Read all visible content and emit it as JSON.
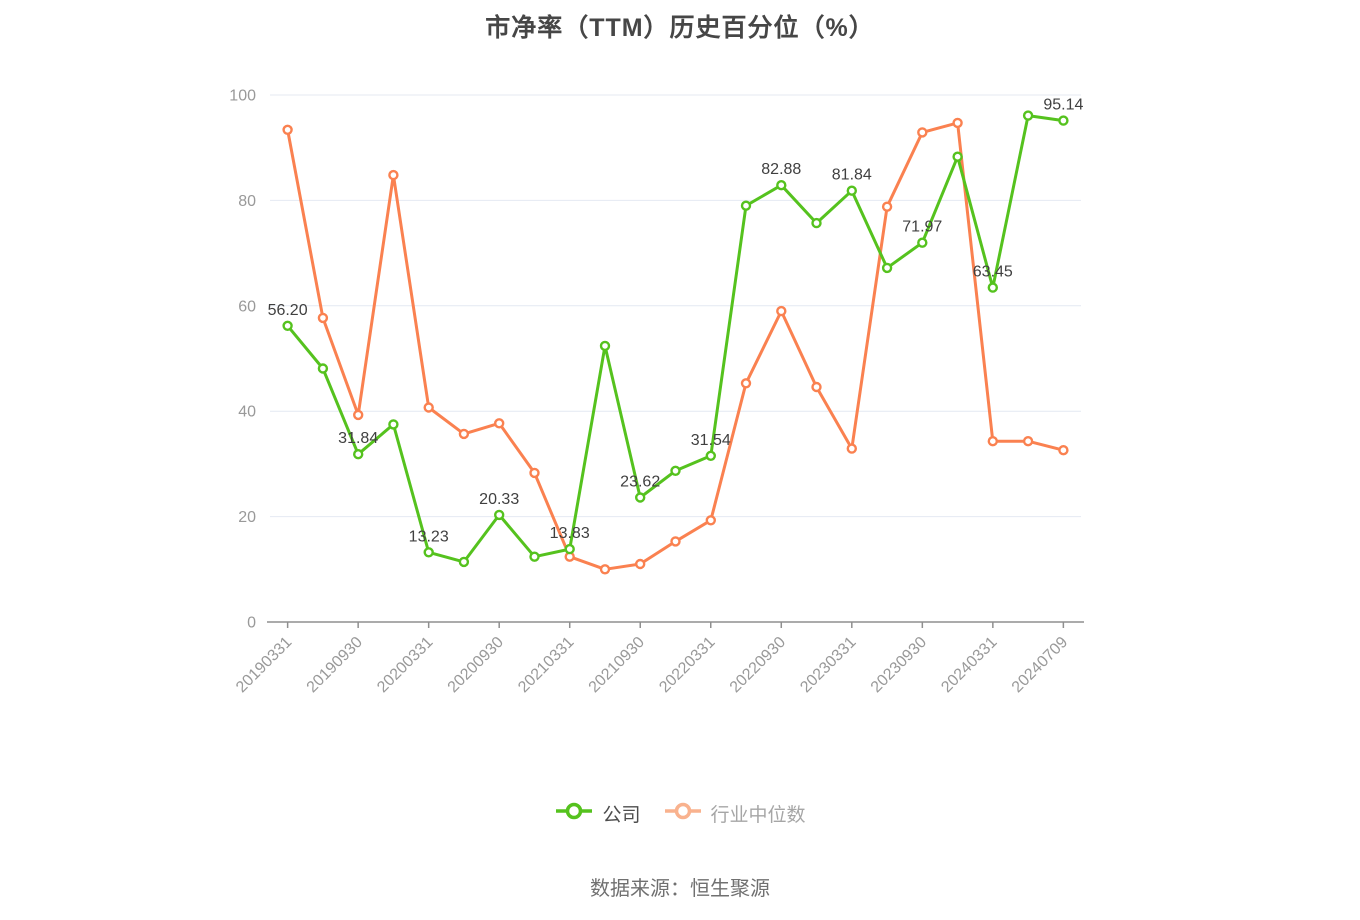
{
  "page": {
    "title": "市净率（TTM）历史百分位（%）",
    "source": "数据来源：恒生聚源"
  },
  "legend": [
    {
      "label": "公司",
      "color": "#55c21e",
      "text_color": "#4d4d4d"
    },
    {
      "label": "行业中位数",
      "color": "#f9b28e",
      "text_color": "#a6a6a6"
    }
  ],
  "chart_data": {
    "type": "line",
    "title": "市净率（TTM）历史百分位（%）",
    "xlabel": "",
    "ylabel": "",
    "ylim": [
      0,
      100
    ],
    "y_ticks": [
      0,
      20,
      40,
      60,
      80,
      100
    ],
    "grid": "horizontal-only",
    "grid_color": "#e4e9f2",
    "legend_position": "bottom",
    "n_points": 23,
    "x_tick_indices": [
      0,
      2,
      4,
      6,
      8,
      10,
      12,
      14,
      16,
      18,
      20,
      22
    ],
    "x_tick_labels": [
      "20190331",
      "20190930",
      "20200331",
      "20200930",
      "20210331",
      "20210930",
      "20220331",
      "20220930",
      "20230331",
      "20230930",
      "20240331",
      "20240709"
    ],
    "series": [
      {
        "name": "公司",
        "color": "#55c21e",
        "values": [
          56.2,
          48.1,
          31.84,
          37.5,
          13.23,
          11.4,
          20.33,
          12.4,
          13.83,
          52.4,
          23.62,
          28.7,
          31.54,
          79.0,
          82.88,
          75.7,
          81.84,
          67.2,
          71.97,
          88.3,
          63.45,
          96.1,
          95.14
        ],
        "point_labels": [
          "56.20",
          null,
          "31.84",
          null,
          "13.23",
          null,
          "20.33",
          null,
          "13.83",
          null,
          "23.62",
          null,
          "31.54",
          null,
          "82.88",
          null,
          "81.84",
          null,
          "71.97",
          null,
          "63.45",
          null,
          "95.14"
        ]
      },
      {
        "name": "行业中位数",
        "color": "#fa8150",
        "values": [
          93.4,
          57.7,
          39.3,
          84.8,
          40.7,
          35.7,
          37.7,
          28.3,
          12.4,
          10.0,
          11.0,
          15.3,
          19.3,
          45.3,
          59.0,
          44.6,
          32.9,
          78.8,
          92.9,
          94.7,
          34.3,
          34.3,
          32.6
        ],
        "point_labels": []
      }
    ],
    "axis_color": "#8f8f8f",
    "label_color": "#999999",
    "value_label_color": "#404040"
  }
}
